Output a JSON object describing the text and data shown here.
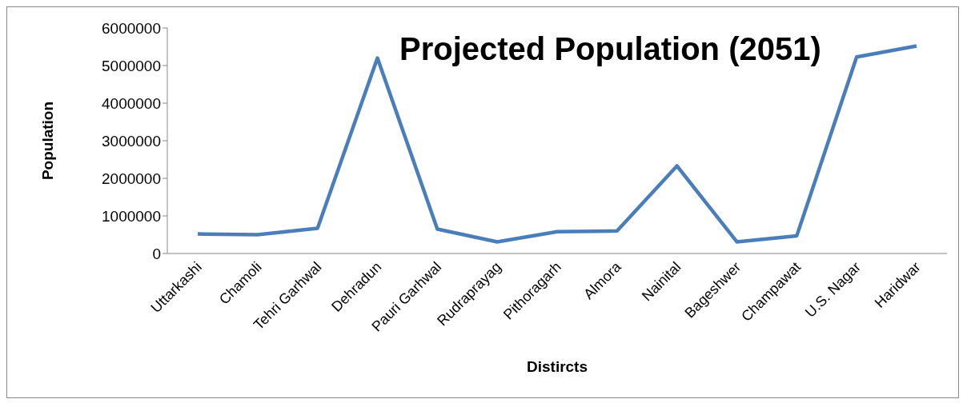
{
  "chart_data": {
    "type": "line",
    "title": "Projected Population (2051)",
    "xlabel": "Distircts",
    "ylabel": "Population",
    "categories": [
      "Uttarkashi",
      "Chamoli",
      "Tehri Garhwal",
      "Dehradun",
      "Pauri Garhwal",
      "Rudraprayag",
      "Pithoragarh",
      "Almora",
      "Nainital",
      "Bageshwer",
      "Champawat",
      "U.S. Nagar",
      "Haridwar"
    ],
    "series": [
      {
        "color": "#4a7ebb",
        "values": [
          520000,
          500000,
          670000,
          5200000,
          650000,
          310000,
          580000,
          600000,
          2330000,
          310000,
          470000,
          5230000,
          5520000
        ]
      }
    ],
    "ylim": [
      0,
      6000000
    ],
    "yticks": [
      0,
      1000000,
      2000000,
      3000000,
      4000000,
      5000000,
      6000000
    ],
    "grid": false,
    "legend": false,
    "marker": "none",
    "line_style": "solid"
  }
}
